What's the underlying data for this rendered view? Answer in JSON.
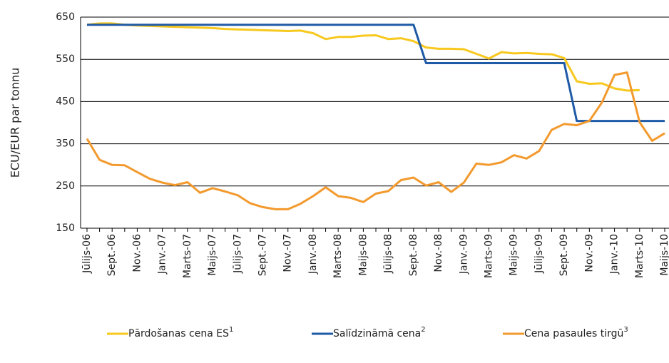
{
  "chart_data": {
    "type": "line",
    "y_label": "ECU/EUR par tonnu",
    "categories": [
      "Jūlijs-06",
      null,
      "Sept.-06",
      null,
      "Nov.-06",
      null,
      "Janv.-07",
      null,
      "Marts-07",
      null,
      "Maijs-07",
      null,
      "Jūlijs-07",
      null,
      "Sept.-07",
      null,
      "Nov.-07",
      null,
      "Janv.-08",
      null,
      "Marts-08",
      null,
      "Maijs-08",
      null,
      "Jūlijs-08",
      null,
      "Sept.-08",
      null,
      "Nov.-08",
      null,
      "Janv.-09",
      null,
      "Marts-09",
      null,
      "Maijs-09",
      null,
      "Jūlijs-09",
      null,
      "Sept.-09",
      null,
      "Nov.-09",
      null,
      "Janv.-10",
      null,
      "Marts-10",
      null,
      "Maijs-10"
    ],
    "series": [
      {
        "name": "Pārdošanas cena ES",
        "footnote": "1",
        "color": "#f7c81e",
        "values": [
          632,
          635,
          635,
          632,
          630,
          629,
          628,
          627,
          626,
          625,
          624,
          622,
          621,
          620,
          619,
          618,
          617,
          618,
          612,
          598,
          603,
          603,
          606,
          607,
          598,
          600,
          593,
          578,
          575,
          575,
          574,
          563,
          552,
          567,
          564,
          565,
          563,
          562,
          553,
          498,
          492,
          493,
          481,
          476,
          477,
          null,
          null
        ]
      },
      {
        "name": "Salīdzināmā cena",
        "footnote": "2",
        "color": "#1f5aa6",
        "values": [
          632,
          632,
          632,
          632,
          632,
          632,
          632,
          632,
          632,
          632,
          632,
          632,
          632,
          632,
          632,
          632,
          632,
          632,
          632,
          632,
          632,
          632,
          632,
          632,
          632,
          632,
          632,
          541,
          541,
          541,
          541,
          541,
          541,
          541,
          541,
          541,
          541,
          541,
          541,
          404,
          404,
          404,
          404,
          404,
          404,
          404,
          404
        ]
      },
      {
        "name": "Cena pasaules tirgū",
        "footnote": "3",
        "color": "#f39a2e",
        "values": [
          362,
          312,
          300,
          299,
          283,
          267,
          258,
          252,
          259,
          234,
          245,
          237,
          228,
          209,
          200,
          195,
          195,
          208,
          226,
          247,
          226,
          222,
          212,
          232,
          238,
          264,
          270,
          251,
          259,
          236,
          258,
          303,
          300,
          306,
          323,
          315,
          333,
          383,
          397,
          394,
          404,
          448,
          513,
          519,
          401,
          357,
          375
        ]
      }
    ],
    "ylim": [
      150,
      650
    ],
    "yticks": [
      150,
      250,
      350,
      450,
      550,
      650
    ],
    "grid": true
  }
}
